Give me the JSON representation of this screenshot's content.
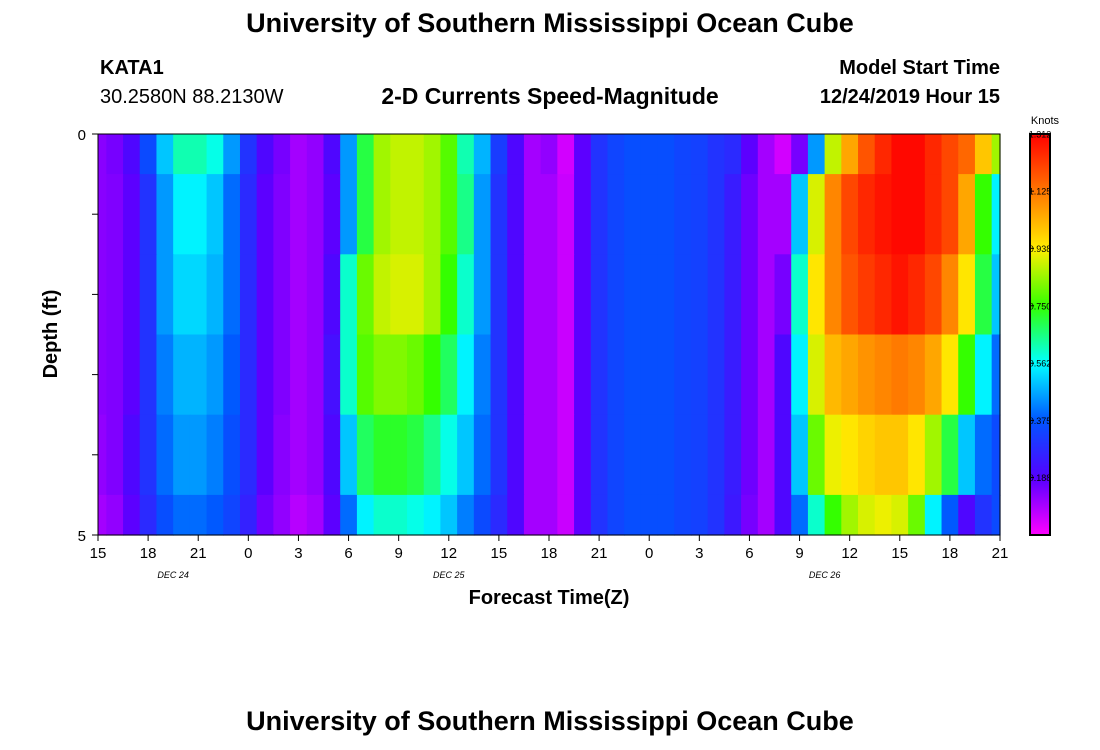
{
  "header": {
    "title": "University of Southern Mississippi Ocean Cube",
    "station_id": "KATA1",
    "station_coords": "30.2580N 88.2130W",
    "chart_title": "2-D Currents Speed-Magnitude",
    "model_start_label": "Model Start Time",
    "model_start_value": "12/24/2019 Hour 15"
  },
  "footer": {
    "title": "University of Southern Mississippi Ocean Cube"
  },
  "chart_data": {
    "type": "heatmap",
    "title": "2-D Currents Speed-Magnitude",
    "xlabel": "Forecast Time(Z)",
    "ylabel": "Depth (ft)",
    "x_start_hour": 15,
    "x_hours": 54,
    "x_ticks": [
      "15",
      "18",
      "21",
      "0",
      "3",
      "6",
      "9",
      "12",
      "15",
      "18",
      "21",
      "0",
      "3",
      "6",
      "9",
      "12",
      "15",
      "18",
      "21"
    ],
    "date_labels": [
      {
        "label": "DEC 24",
        "hour": 4.5
      },
      {
        "label": "DEC 25",
        "hour": 21
      },
      {
        "label": "DEC 26",
        "hour": 43.5
      }
    ],
    "y_ticks": [
      "0",
      "5"
    ],
    "ylim": [
      0,
      5
    ],
    "depth_levels": 5,
    "colorbar": {
      "unit": "Knots",
      "ticks": [
        "1.312",
        "1.125",
        "0.938",
        "0.750",
        "0.562",
        "0.375",
        "0.188"
      ],
      "min": 0.0,
      "max": 1.312
    },
    "anchors_hours": [
      0,
      1,
      2,
      3,
      4,
      5,
      6,
      7,
      8,
      9,
      10,
      11,
      12,
      13,
      14,
      15,
      16,
      17,
      18,
      19,
      20,
      21,
      22,
      23,
      24,
      25,
      26,
      27,
      28,
      29,
      30,
      31,
      32,
      33,
      34,
      35,
      36,
      37,
      38,
      39,
      40,
      41,
      42,
      43,
      44,
      45,
      46,
      47,
      48,
      49,
      50,
      51,
      52,
      53,
      54
    ],
    "speed_knots": [
      [
        0.13,
        0.15,
        0.2,
        0.35,
        0.5,
        0.62,
        0.62,
        0.58,
        0.45,
        0.3,
        0.2,
        0.15,
        0.1,
        0.12,
        0.2,
        0.45,
        0.7,
        0.85,
        0.88,
        0.88,
        0.85,
        0.78,
        0.62,
        0.48,
        0.32,
        0.2,
        0.1,
        0.12,
        0.05,
        0.18,
        0.3,
        0.34,
        0.36,
        0.36,
        0.36,
        0.34,
        0.33,
        0.3,
        0.28,
        0.18,
        0.1,
        0.05,
        0.15,
        0.45,
        0.88,
        1.05,
        1.18,
        1.25,
        1.3,
        1.3,
        1.25,
        1.2,
        1.15,
        1.0,
        0.85
      ],
      [
        0.13,
        0.14,
        0.18,
        0.3,
        0.45,
        0.55,
        0.55,
        0.5,
        0.4,
        0.28,
        0.18,
        0.14,
        0.1,
        0.12,
        0.18,
        0.45,
        0.7,
        0.85,
        0.88,
        0.88,
        0.85,
        0.78,
        0.65,
        0.45,
        0.3,
        0.2,
        0.1,
        0.1,
        0.06,
        0.18,
        0.3,
        0.34,
        0.36,
        0.36,
        0.36,
        0.34,
        0.33,
        0.3,
        0.25,
        0.16,
        0.1,
        0.1,
        0.5,
        0.9,
        1.1,
        1.2,
        1.25,
        1.28,
        1.3,
        1.3,
        1.25,
        1.2,
        1.05,
        0.75,
        0.55
      ],
      [
        0.13,
        0.14,
        0.18,
        0.3,
        0.45,
        0.52,
        0.52,
        0.48,
        0.4,
        0.28,
        0.18,
        0.14,
        0.1,
        0.12,
        0.2,
        0.6,
        0.8,
        0.88,
        0.9,
        0.9,
        0.85,
        0.75,
        0.6,
        0.45,
        0.3,
        0.2,
        0.1,
        0.1,
        0.06,
        0.18,
        0.3,
        0.34,
        0.36,
        0.36,
        0.36,
        0.34,
        0.33,
        0.3,
        0.25,
        0.16,
        0.1,
        0.15,
        0.6,
        0.95,
        1.1,
        1.18,
        1.22,
        1.25,
        1.28,
        1.25,
        1.2,
        1.1,
        0.95,
        0.7,
        0.5
      ],
      [
        0.13,
        0.14,
        0.18,
        0.3,
        0.42,
        0.48,
        0.48,
        0.45,
        0.38,
        0.28,
        0.18,
        0.14,
        0.1,
        0.12,
        0.22,
        0.6,
        0.78,
        0.82,
        0.82,
        0.8,
        0.75,
        0.68,
        0.55,
        0.42,
        0.3,
        0.2,
        0.1,
        0.1,
        0.06,
        0.18,
        0.3,
        0.34,
        0.36,
        0.36,
        0.36,
        0.34,
        0.33,
        0.3,
        0.25,
        0.16,
        0.1,
        0.2,
        0.55,
        0.9,
        1.02,
        1.05,
        1.08,
        1.1,
        1.12,
        1.1,
        1.05,
        0.95,
        0.75,
        0.55,
        0.4
      ],
      [
        0.12,
        0.14,
        0.2,
        0.3,
        0.4,
        0.45,
        0.45,
        0.42,
        0.36,
        0.28,
        0.18,
        0.13,
        0.1,
        0.12,
        0.2,
        0.5,
        0.68,
        0.72,
        0.72,
        0.7,
        0.65,
        0.58,
        0.5,
        0.4,
        0.3,
        0.2,
        0.1,
        0.1,
        0.06,
        0.18,
        0.3,
        0.34,
        0.36,
        0.36,
        0.36,
        0.34,
        0.33,
        0.3,
        0.25,
        0.16,
        0.1,
        0.2,
        0.5,
        0.8,
        0.92,
        0.95,
        0.98,
        1.0,
        1.0,
        0.95,
        0.85,
        0.7,
        0.5,
        0.4,
        0.35
      ],
      [
        0.1,
        0.12,
        0.18,
        0.28,
        0.36,
        0.4,
        0.4,
        0.38,
        0.34,
        0.26,
        0.16,
        0.12,
        0.08,
        0.1,
        0.18,
        0.4,
        0.55,
        0.6,
        0.6,
        0.58,
        0.55,
        0.5,
        0.42,
        0.35,
        0.28,
        0.2,
        0.1,
        0.1,
        0.06,
        0.18,
        0.3,
        0.34,
        0.36,
        0.36,
        0.36,
        0.34,
        0.33,
        0.3,
        0.24,
        0.15,
        0.1,
        0.2,
        0.4,
        0.6,
        0.75,
        0.85,
        0.9,
        0.92,
        0.9,
        0.8,
        0.55,
        0.38,
        0.2,
        0.3,
        0.35
      ]
    ]
  }
}
